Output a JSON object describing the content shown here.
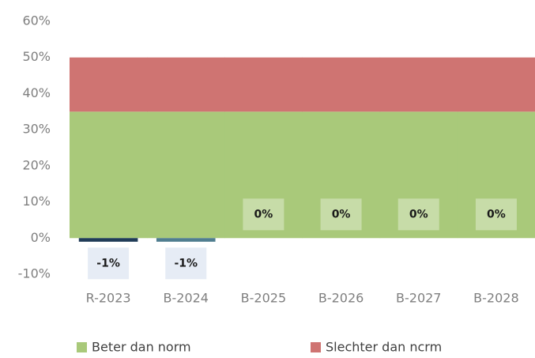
{
  "chart_data": {
    "type": "bar",
    "categories": [
      "R-2023",
      "B-2024",
      "B-2025",
      "B-2026",
      "B-2027",
      "B-2028"
    ],
    "values": [
      -1,
      -1,
      0,
      0,
      0,
      0
    ],
    "value_labels": [
      "-1%",
      "-1%",
      "0%",
      "0%",
      "0%",
      "0%"
    ],
    "colors": [
      "#1f3b57",
      "#4f7d8f",
      "#4f7d8f",
      "#4f7d8f",
      "#4f7d8f",
      "#4f7d8f"
    ],
    "series": [
      {
        "name": "Beter dan norm",
        "color": "#a9c97a",
        "values": [
          35,
          35,
          35,
          35,
          35,
          35
        ]
      },
      {
        "name": "Slechter dan ncrm",
        "color": "#cf7472",
        "values": [
          15,
          15,
          15,
          15,
          15,
          15
        ]
      }
    ],
    "stacked": true,
    "ylim": [
      -10,
      60
    ],
    "yticks": [
      {
        "value": -10,
        "label": "-10%"
      },
      {
        "value": 0,
        "label": "0%"
      },
      {
        "value": 10,
        "label": "10%"
      },
      {
        "value": 20,
        "label": "20%"
      },
      {
        "value": 30,
        "label": "30%"
      },
      {
        "value": 40,
        "label": "40%"
      },
      {
        "value": 50,
        "label": "50%"
      },
      {
        "value": 60,
        "label": "60%"
      }
    ],
    "grid": false
  }
}
